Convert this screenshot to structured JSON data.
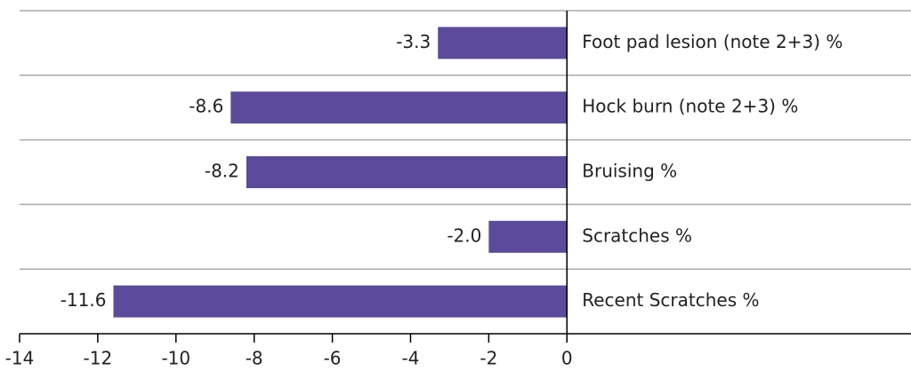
{
  "chart_data": {
    "type": "hbar",
    "categories": [
      "Foot pad lesion (note 2+3) %",
      "Hock burn (note 2+3) %",
      "Bruising %",
      "Scratches %",
      "Recent Scratches %"
    ],
    "values": [
      -3.3,
      -8.6,
      -8.2,
      -2.0,
      -11.6
    ],
    "value_labels": [
      "-3.3",
      "-8.6",
      "-8.2",
      "-2.0",
      "-11.6"
    ],
    "color": "#5b4b9a",
    "xlim": [
      -14,
      8.8
    ],
    "xticks": [
      -14,
      -12,
      -10,
      -8,
      -6,
      -4,
      -2,
      0
    ]
  }
}
